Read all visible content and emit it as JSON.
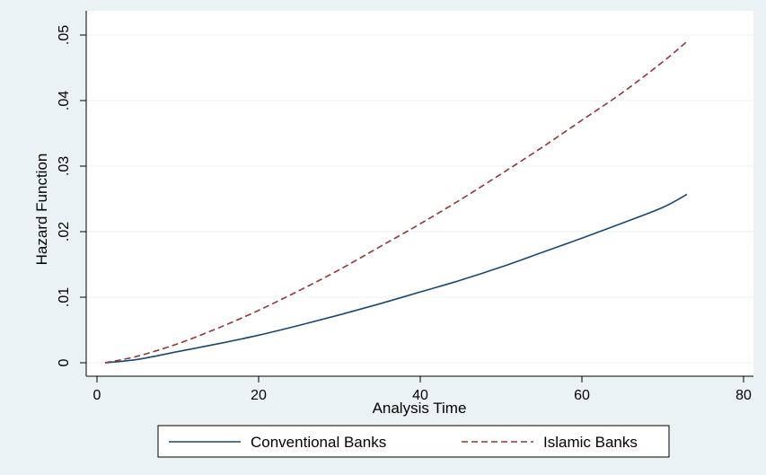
{
  "chart_data": {
    "type": "line",
    "title": "",
    "xlabel": "Analysis Time",
    "ylabel": "Hazard Function",
    "xlim": [
      0,
      80
    ],
    "ylim": [
      0,
      0.05
    ],
    "xticks": [
      0,
      20,
      40,
      60,
      80
    ],
    "xtick_labels": [
      "0",
      "20",
      "40",
      "60",
      "80"
    ],
    "yticks": [
      0,
      0.01,
      0.02,
      0.03,
      0.04,
      0.05
    ],
    "ytick_labels": [
      "0",
      ".01",
      ".02",
      ".03",
      ".04",
      ".05"
    ],
    "grid": true,
    "legend_position": "bottom",
    "series": [
      {
        "name": "Conventional Banks",
        "color": "#1a476f",
        "style": "solid",
        "x": [
          1,
          5,
          10,
          15,
          20,
          25,
          30,
          35,
          40,
          45,
          50,
          55,
          60,
          65,
          70,
          73
        ],
        "y": [
          0.0,
          0.0005,
          0.0017,
          0.0029,
          0.0042,
          0.0057,
          0.0073,
          0.009,
          0.0108,
          0.0126,
          0.0146,
          0.0168,
          0.019,
          0.0213,
          0.0237,
          0.0257
        ]
      },
      {
        "name": "Islamic Banks",
        "color": "#90353b",
        "style": "dashed",
        "x": [
          1,
          5,
          10,
          15,
          20,
          25,
          30,
          35,
          40,
          45,
          50,
          55,
          60,
          65,
          70,
          73
        ],
        "y": [
          0.0,
          0.001,
          0.0029,
          0.0053,
          0.008,
          0.011,
          0.0142,
          0.0177,
          0.0212,
          0.0249,
          0.0288,
          0.0328,
          0.037,
          0.0412,
          0.0459,
          0.049
        ]
      }
    ]
  }
}
